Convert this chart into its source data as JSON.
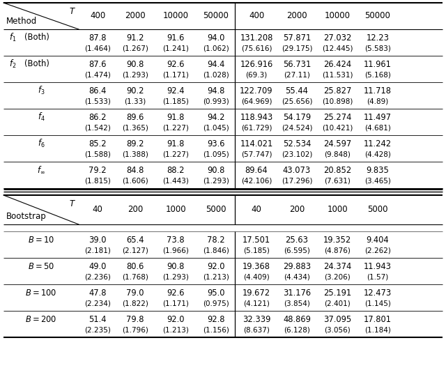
{
  "top_rows": [
    {
      "method": "f_1",
      "label2": "(Both)",
      "vals": [
        "87.8",
        "91.2",
        "91.6",
        "94.0",
        "131.208",
        "57.871",
        "27.032",
        "12.23"
      ],
      "subs": [
        "(1.464)",
        "(1.267)",
        "(1.241)",
        "(1.062)",
        "(75.616)",
        "(29.175)",
        "(12.445)",
        "(5.583)"
      ]
    },
    {
      "method": "f_2",
      "label2": "(Both)",
      "vals": [
        "87.6",
        "90.8",
        "92.6",
        "94.4",
        "126.916",
        "56.731",
        "26.424",
        "11.961"
      ],
      "subs": [
        "(1.474)",
        "(1.293)",
        "(1.171)",
        "(1.028)",
        "(69.3)",
        "(27.11)",
        "(11.531)",
        "(5.168)"
      ]
    },
    {
      "method": "f_3",
      "label2": "",
      "vals": [
        "86.4",
        "90.2",
        "92.4",
        "94.8",
        "122.709",
        "55.44",
        "25.827",
        "11.718"
      ],
      "subs": [
        "(1.533)",
        "(1.33)",
        "(1.185)",
        "(0.993)",
        "(64.969)",
        "(25.656)",
        "(10.898)",
        "(4.89)"
      ]
    },
    {
      "method": "f_4",
      "label2": "",
      "vals": [
        "86.2",
        "89.6",
        "91.8",
        "94.2",
        "118.943",
        "54.179",
        "25.274",
        "11.497"
      ],
      "subs": [
        "(1.542)",
        "(1.365)",
        "(1.227)",
        "(1.045)",
        "(61.729)",
        "(24.524)",
        "(10.421)",
        "(4.681)"
      ]
    },
    {
      "method": "f_6",
      "label2": "",
      "vals": [
        "85.2",
        "89.2",
        "91.8",
        "93.6",
        "114.021",
        "52.534",
        "24.597",
        "11.242"
      ],
      "subs": [
        "(1.588)",
        "(1.388)",
        "(1.227)",
        "(1.095)",
        "(57.747)",
        "(23.102)",
        "(9.848)",
        "(4.428)"
      ]
    },
    {
      "method": "f_inf",
      "label2": "",
      "vals": [
        "79.2",
        "84.8",
        "88.2",
        "90.8",
        "89.64",
        "43.073",
        "20.852",
        "9.835"
      ],
      "subs": [
        "(1.815)",
        "(1.606)",
        "(1.443)",
        "(1.293)",
        "(42.106)",
        "(17.296)",
        "(7.631)",
        "(3.465)"
      ]
    }
  ],
  "bot_rows": [
    {
      "method": "B = 10",
      "vals": [
        "39.0",
        "65.4",
        "73.8",
        "78.2",
        "17.501",
        "25.63",
        "19.352",
        "9.404"
      ],
      "subs": [
        "(2.181)",
        "(2.127)",
        "(1.966)",
        "(1.846)",
        "(5.185)",
        "(6.595)",
        "(4.876)",
        "(2.262)"
      ]
    },
    {
      "method": "B = 50",
      "vals": [
        "49.0",
        "80.6",
        "90.8",
        "92.0",
        "19.368",
        "29.883",
        "24.374",
        "11.943"
      ],
      "subs": [
        "(2.236)",
        "(1.768)",
        "(1.293)",
        "(1.213)",
        "(4.409)",
        "(4.434)",
        "(3.206)",
        "(1.57)"
      ]
    },
    {
      "method": "B = 100",
      "vals": [
        "47.8",
        "79.0",
        "92.6",
        "95.0",
        "19.672",
        "31.176",
        "25.191",
        "12.473"
      ],
      "subs": [
        "(2.234)",
        "(1.822)",
        "(1.171)",
        "(0.975)",
        "(4.121)",
        "(3.854)",
        "(2.401)",
        "(1.145)"
      ]
    },
    {
      "method": "B = 200",
      "vals": [
        "51.4",
        "79.8",
        "92.0",
        "92.8",
        "32.339",
        "48.869",
        "37.095",
        "17.801"
      ],
      "subs": [
        "(2.235)",
        "(1.796)",
        "(1.213)",
        "(1.156)",
        "(8.637)",
        "(6.128)",
        "(3.056)",
        "(1.184)"
      ]
    }
  ],
  "method_labels": {
    "f_1": "$f_1$",
    "f_2": "$f_2$",
    "f_3": "$f_3$",
    "f_4": "$f_4$",
    "f_6": "$f_6$",
    "f_inf": "$f_{\\infty}$"
  },
  "top_t_cols": [
    "400",
    "2000",
    "10000",
    "50000"
  ],
  "bot_t_cols": [
    "40",
    "200",
    "1000",
    "5000"
  ],
  "bg_color": "#ffffff"
}
